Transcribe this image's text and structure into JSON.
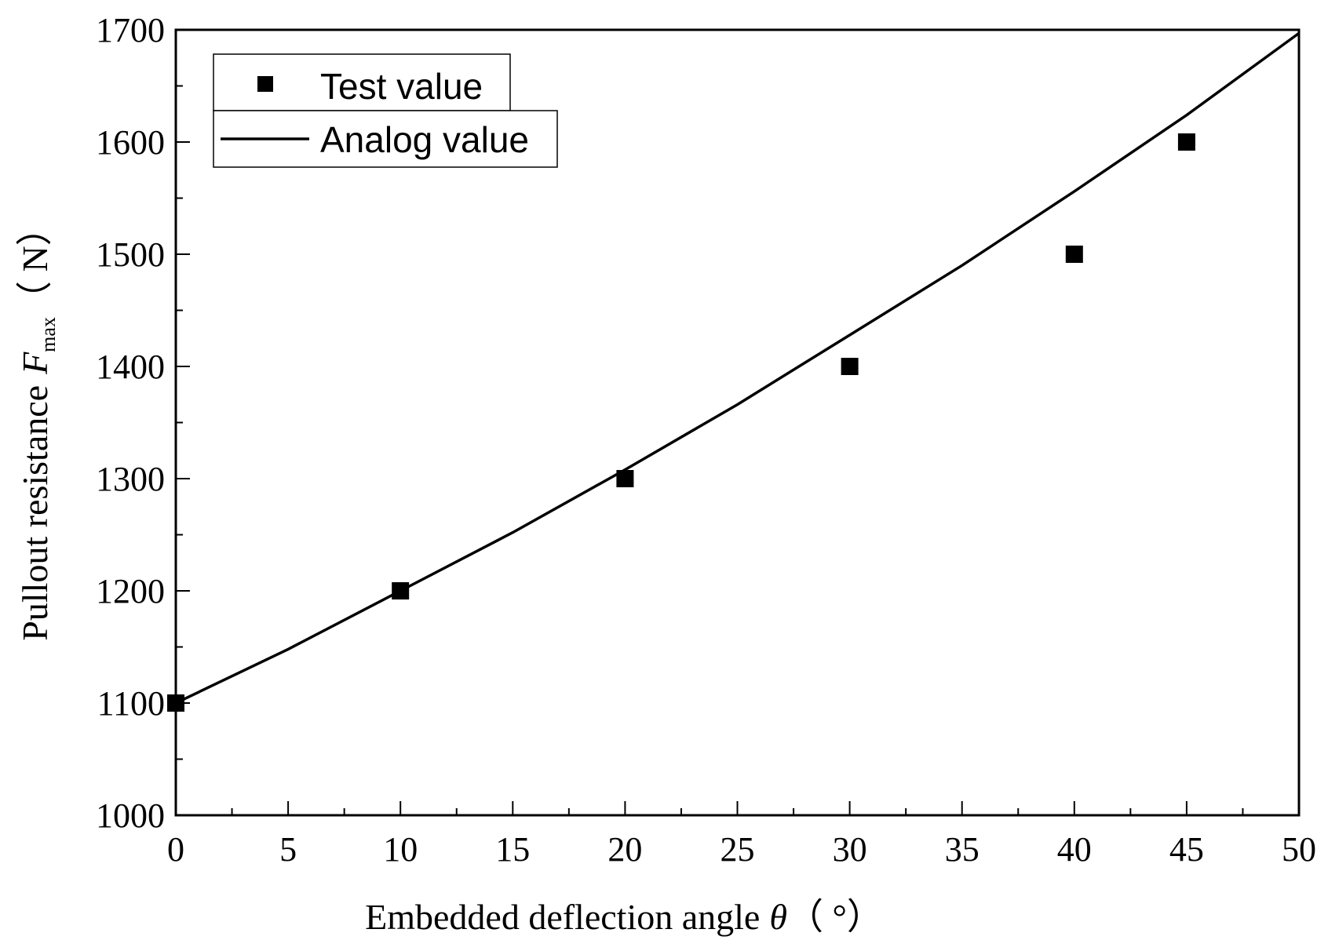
{
  "chart_data": {
    "type": "scatter+line",
    "xlabel": "Embedded deflection angle",
    "xlabel_symbol": "θ",
    "xlabel_unit": "（ °）",
    "ylabel": "Pullout resistance",
    "ylabel_symbol": "F",
    "ylabel_subscript": "max",
    "ylabel_unit": "（ N）",
    "xlim": [
      0,
      50
    ],
    "ylim": [
      1000,
      1700
    ],
    "x_ticks": [
      0,
      5,
      10,
      15,
      20,
      25,
      30,
      35,
      40,
      45,
      50
    ],
    "y_ticks": [
      1000,
      1100,
      1200,
      1300,
      1400,
      1500,
      1600,
      1700
    ],
    "x_minor_step": 2.5,
    "y_minor_step": 50,
    "grid": false,
    "legend": {
      "position": "top-left",
      "entries": [
        "Test value",
        "Analog value"
      ]
    },
    "series": [
      {
        "name": "Test value",
        "kind": "scatter",
        "marker": "square",
        "x": [
          0,
          10,
          20,
          30,
          40,
          45
        ],
        "y": [
          1100,
          1200,
          1300,
          1400,
          1500,
          1600
        ]
      },
      {
        "name": "Analog value",
        "kind": "line",
        "x": [
          0,
          5,
          10,
          15,
          20,
          25,
          30,
          35,
          40,
          45,
          50
        ],
        "y": [
          1100,
          1148,
          1200,
          1252,
          1308,
          1366,
          1428,
          1490,
          1556,
          1624,
          1697
        ]
      }
    ]
  }
}
